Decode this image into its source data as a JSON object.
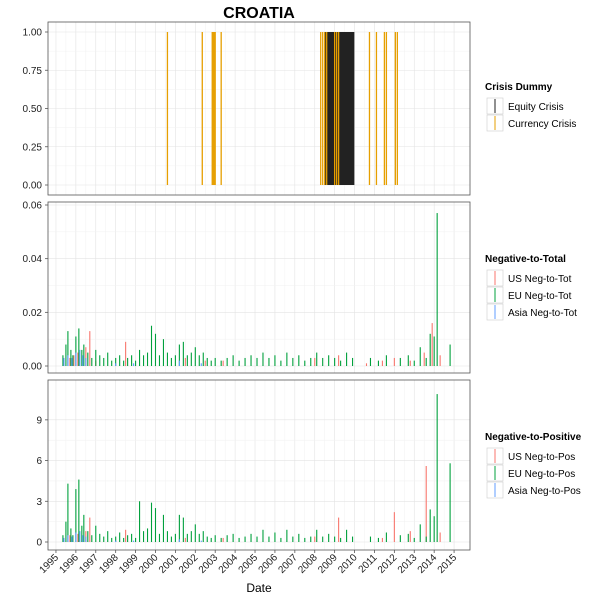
{
  "chart_data": {
    "type": "bar",
    "title": "CROATIA",
    "xlabel": "Date",
    "x_ticks": [
      "1995",
      "1996",
      "1997",
      "1998",
      "1999",
      "2000",
      "2001",
      "2002",
      "2003",
      "2004",
      "2005",
      "2006",
      "2007",
      "2008",
      "2009",
      "2010",
      "2011",
      "2012",
      "2013",
      "2014",
      "2015"
    ],
    "grid": true,
    "legend_placement": "right",
    "panels": [
      {
        "id": "crisis",
        "legend_title": "Crisis Dummy",
        "ylim": [
          0,
          1.0
        ],
        "y_ticks": [
          {
            "value": 0.0,
            "label": "0.00"
          },
          {
            "value": 0.25,
            "label": "0.25"
          },
          {
            "value": 0.5,
            "label": "0.50"
          },
          {
            "value": 0.75,
            "label": "0.75"
          },
          {
            "value": 1.0,
            "label": "1.00"
          }
        ],
        "series": [
          {
            "name": "Equity Crisis",
            "color": "#222222",
            "x": [
              2008.55,
              2008.6,
              2008.65,
              2008.7,
              2008.75,
              2008.8,
              2008.85,
              2008.9,
              2008.95,
              2009.0,
              2009.05,
              2009.1,
              2009.15,
              2009.2,
              2009.25,
              2009.3,
              2009.35,
              2009.4,
              2009.45,
              2009.5,
              2009.55,
              2009.6,
              2009.65,
              2009.7,
              2009.75,
              2009.8,
              2009.85,
              2009.9,
              2009.95
            ],
            "values": [
              1,
              1,
              1,
              1,
              1,
              1,
              1,
              1,
              1,
              1,
              1,
              1,
              1,
              1,
              1,
              1,
              1,
              1,
              1,
              1,
              1,
              1,
              1,
              1,
              1,
              1,
              1,
              1,
              1
            ]
          },
          {
            "name": "Currency Crisis",
            "color": "#E69F00",
            "x": [
              2000.6,
              2002.35,
              2002.85,
              2002.9,
              2002.95,
              2003.0,
              2003.3,
              2008.3,
              2008.4,
              2008.5,
              2008.6,
              2009.0,
              2009.1,
              2009.2,
              2010.75,
              2011.1,
              2011.5,
              2011.6,
              2012.05,
              2012.15
            ],
            "values": [
              1,
              1,
              1,
              1,
              1,
              1,
              1,
              1,
              1,
              1,
              1,
              1,
              1,
              1,
              1,
              1,
              1,
              1,
              1,
              1
            ]
          }
        ]
      },
      {
        "id": "neg_to_total",
        "legend_title": "Negative-to-Total",
        "ylim": [
          0,
          0.06
        ],
        "y_ticks": [
          {
            "value": 0.0,
            "label": "0.00"
          },
          {
            "value": 0.02,
            "label": "0.02"
          },
          {
            "value": 0.04,
            "label": "0.04"
          },
          {
            "value": 0.06,
            "label": "0.06"
          }
        ],
        "series": [
          {
            "name": "US Neg-to-Tot",
            "color": "#F8766D",
            "x": [
              1995.7,
              1995.9,
              1996.1,
              1996.5,
              1996.7,
              1997.0,
              1998.5,
              2001.5,
              2002.5,
              2003.4,
              2008.0,
              2009.2,
              2010.6,
              2011.4,
              2012.0,
              2012.8,
              2013.5,
              2013.9,
              2014.3
            ],
            "values": [
              0.003,
              0.004,
              0.005,
              0.007,
              0.013,
              0.002,
              0.009,
              0.003,
              0.002,
              0.002,
              0.003,
              0.004,
              0.001,
              0.002,
              0.003,
              0.002,
              0.005,
              0.016,
              0.004
            ]
          },
          {
            "name": "EU Neg-to-Tot",
            "color": "#00A03C",
            "x": [
              1995.35,
              1995.5,
              1995.6,
              1995.75,
              1995.85,
              1996.0,
              1996.15,
              1996.3,
              1996.4,
              1996.6,
              1996.8,
              1997.0,
              1997.2,
              1997.4,
              1997.6,
              1997.8,
              1998.0,
              1998.2,
              1998.4,
              1998.6,
              1998.8,
              1999.0,
              1999.2,
              1999.4,
              1999.6,
              1999.8,
              2000.0,
              2000.2,
              2000.4,
              2000.6,
              2000.8,
              2001.0,
              2001.2,
              2001.4,
              2001.6,
              2001.8,
              2002.0,
              2002.2,
              2002.4,
              2002.6,
              2002.8,
              2003.0,
              2003.3,
              2003.6,
              2003.9,
              2004.2,
              2004.5,
              2004.8,
              2005.1,
              2005.4,
              2005.7,
              2006.0,
              2006.3,
              2006.6,
              2006.9,
              2007.2,
              2007.5,
              2007.8,
              2008.1,
              2008.4,
              2008.7,
              2009.0,
              2009.3,
              2009.6,
              2009.9,
              2010.8,
              2011.2,
              2011.6,
              2012.3,
              2012.7,
              2013.0,
              2013.3,
              2013.6,
              2013.8,
              2014.0,
              2014.15,
              2014.8
            ],
            "values": [
              0.004,
              0.008,
              0.013,
              0.006,
              0.004,
              0.011,
              0.014,
              0.006,
              0.008,
              0.005,
              0.003,
              0.006,
              0.004,
              0.003,
              0.005,
              0.002,
              0.003,
              0.004,
              0.002,
              0.003,
              0.004,
              0.002,
              0.006,
              0.004,
              0.005,
              0.015,
              0.012,
              0.004,
              0.01,
              0.005,
              0.003,
              0.004,
              0.008,
              0.009,
              0.004,
              0.005,
              0.007,
              0.004,
              0.005,
              0.003,
              0.002,
              0.003,
              0.002,
              0.003,
              0.004,
              0.002,
              0.003,
              0.004,
              0.003,
              0.005,
              0.003,
              0.004,
              0.002,
              0.005,
              0.003,
              0.004,
              0.002,
              0.003,
              0.005,
              0.003,
              0.004,
              0.003,
              0.002,
              0.005,
              0.003,
              0.003,
              0.002,
              0.004,
              0.003,
              0.004,
              0.002,
              0.007,
              0.003,
              0.012,
              0.011,
              0.057,
              0.008
            ]
          },
          {
            "name": "Asia Neg-to-Tot",
            "color": "#619CFF",
            "x": [
              1995.4,
              1995.6,
              1995.8,
              1996.0,
              1996.2,
              1996.35,
              1996.5,
              1998.0,
              1998.9,
              2001.2,
              2002.3
            ],
            "values": [
              0.003,
              0.004,
              0.003,
              0.005,
              0.006,
              0.004,
              0.003,
              0.001,
              0.001,
              0.002,
              0.001
            ]
          }
        ]
      },
      {
        "id": "neg_to_pos",
        "legend_title": "Negative-to-Positive",
        "ylim": [
          0,
          11.2
        ],
        "y_ticks": [
          {
            "value": 0,
            "label": "0"
          },
          {
            "value": 3,
            "label": "3"
          },
          {
            "value": 6,
            "label": "6"
          },
          {
            "value": 9,
            "label": "9"
          }
        ],
        "series": [
          {
            "name": "US Neg-to-Pos",
            "color": "#F8766D",
            "x": [
              1995.7,
              1996.1,
              1996.5,
              1996.7,
              1998.5,
              2001.5,
              2003.4,
              2008.0,
              2009.2,
              2011.4,
              2012.0,
              2012.8,
              2013.6,
              2014.3
            ],
            "values": [
              0.5,
              0.6,
              0.8,
              1.8,
              0.9,
              0.3,
              0.3,
              0.4,
              1.8,
              0.3,
              2.2,
              0.8,
              5.6,
              0.7
            ]
          },
          {
            "name": "EU Neg-to-Pos",
            "color": "#00A03C",
            "x": [
              1995.35,
              1995.5,
              1995.6,
              1995.75,
              1995.85,
              1996.0,
              1996.15,
              1996.3,
              1996.4,
              1996.6,
              1996.8,
              1997.0,
              1997.2,
              1997.4,
              1997.6,
              1997.8,
              1998.0,
              1998.2,
              1998.4,
              1998.6,
              1998.8,
              1999.0,
              1999.2,
              1999.4,
              1999.6,
              1999.8,
              2000.0,
              2000.2,
              2000.4,
              2000.6,
              2000.8,
              2001.0,
              2001.2,
              2001.4,
              2001.6,
              2001.8,
              2002.0,
              2002.2,
              2002.4,
              2002.6,
              2002.8,
              2003.0,
              2003.3,
              2003.6,
              2003.9,
              2004.2,
              2004.5,
              2004.8,
              2005.1,
              2005.4,
              2005.7,
              2006.0,
              2006.3,
              2006.6,
              2006.9,
              2007.2,
              2007.5,
              2007.8,
              2008.1,
              2008.4,
              2008.7,
              2009.0,
              2009.3,
              2009.6,
              2009.9,
              2010.8,
              2011.2,
              2011.6,
              2012.3,
              2012.7,
              2013.0,
              2013.3,
              2013.6,
              2013.8,
              2014.0,
              2014.15,
              2014.8
            ],
            "values": [
              0.5,
              1.5,
              4.3,
              1.0,
              0.5,
              3.9,
              4.6,
              1.2,
              2.0,
              0.8,
              0.5,
              1.2,
              0.6,
              0.4,
              0.8,
              0.3,
              0.4,
              0.7,
              0.3,
              0.5,
              0.6,
              0.3,
              3.0,
              0.8,
              1.0,
              2.9,
              2.5,
              0.6,
              2.0,
              0.8,
              0.4,
              0.6,
              2.0,
              1.8,
              0.6,
              0.8,
              1.3,
              0.6,
              0.8,
              0.4,
              0.3,
              0.5,
              0.3,
              0.5,
              0.6,
              0.3,
              0.4,
              0.6,
              0.4,
              0.9,
              0.4,
              0.7,
              0.3,
              0.9,
              0.4,
              0.6,
              0.3,
              0.4,
              0.9,
              0.4,
              0.6,
              0.4,
              0.3,
              0.9,
              0.4,
              0.4,
              0.3,
              0.7,
              0.5,
              0.6,
              0.3,
              1.3,
              0.4,
              2.4,
              1.9,
              10.9,
              5.8
            ]
          },
          {
            "name": "Asia Neg-to-Pos",
            "color": "#619CFF",
            "x": [
              1995.4,
              1995.6,
              1995.8,
              1996.0,
              1996.2,
              1996.35,
              1996.5,
              1998.0,
              1998.9,
              2001.2,
              2002.3
            ],
            "values": [
              0.3,
              0.5,
              0.4,
              0.7,
              0.8,
              0.5,
              0.4,
              0.1,
              0.1,
              0.2,
              0.1
            ]
          }
        ]
      }
    ]
  }
}
